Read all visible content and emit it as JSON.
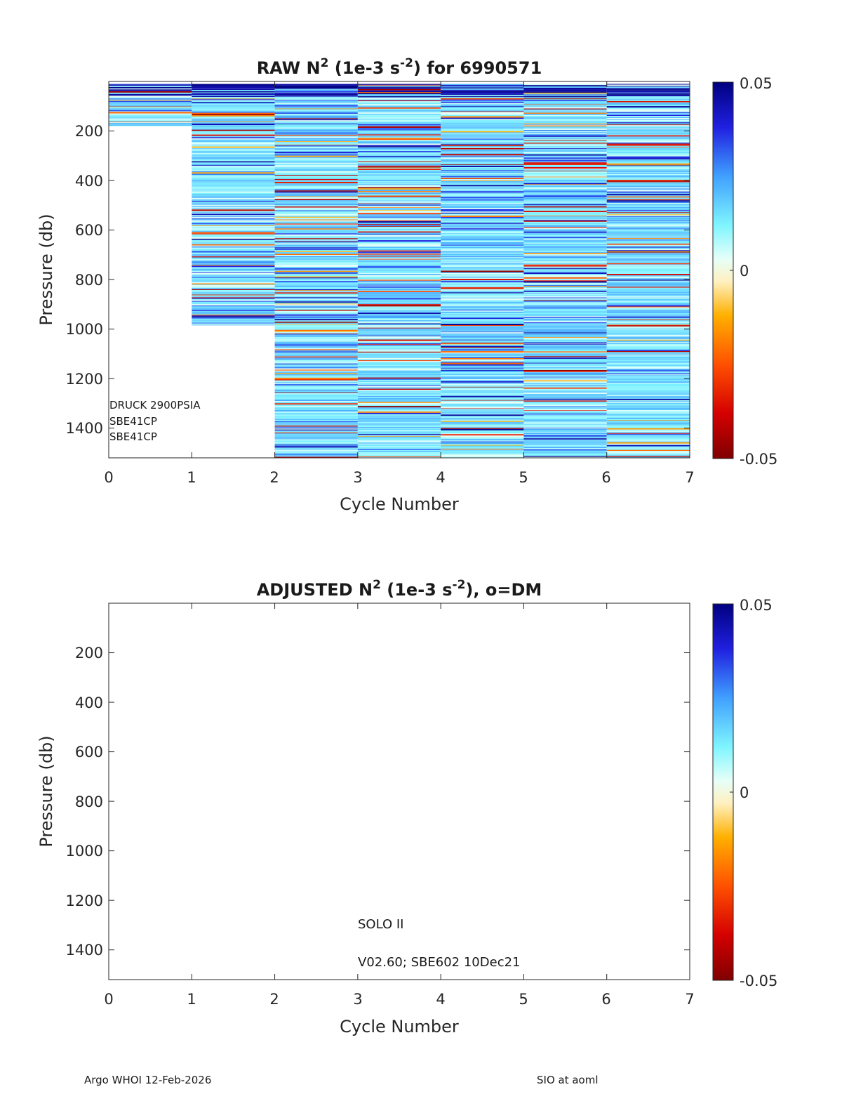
{
  "chart_data": [
    {
      "type": "heatmap",
      "title_main": "RAW N",
      "title_sup1": "2",
      "title_mid": " (1e-3 s",
      "title_sup2": "-2",
      "title_end": ") for 6990571",
      "xlabel": "Cycle Number",
      "ylabel": "Pressure (db)",
      "xlim": [
        0,
        7
      ],
      "ylim": [
        1520,
        0
      ],
      "xticks": [
        "0",
        "1",
        "2",
        "3",
        "4",
        "5",
        "6",
        "7"
      ],
      "yticks": [
        "200",
        "400",
        "600",
        "800",
        "1000",
        "1200",
        "1400"
      ],
      "ytick_values": [
        200,
        400,
        600,
        800,
        1000,
        1200,
        1400
      ],
      "colorbar": {
        "min": -0.05,
        "max": 0.05,
        "ticks": [
          "0.05",
          "0",
          "-0.05"
        ]
      },
      "columns": [
        {
          "cycle_start": 0,
          "cycle_end": 1,
          "max_pressure": 180
        },
        {
          "cycle_start": 1,
          "cycle_end": 2,
          "max_pressure": 985
        },
        {
          "cycle_start": 2,
          "cycle_end": 3,
          "max_pressure": 1520
        },
        {
          "cycle_start": 3,
          "cycle_end": 4,
          "max_pressure": 1520
        },
        {
          "cycle_start": 4,
          "cycle_end": 5,
          "max_pressure": 1520
        },
        {
          "cycle_start": 5,
          "cycle_end": 6,
          "max_pressure": 1520
        },
        {
          "cycle_start": 6,
          "cycle_end": 7,
          "max_pressure": 1520
        }
      ],
      "annotations": [
        "DRUCK 2900PSIA",
        "SBE41CP",
        "SBE41CP"
      ]
    },
    {
      "type": "heatmap",
      "title_main": "ADJUSTED N",
      "title_sup1": "2",
      "title_mid": " (1e-3 s",
      "title_sup2": "-2",
      "title_end": "), o=DM",
      "xlabel": "Cycle Number",
      "ylabel": "Pressure (db)",
      "xlim": [
        0,
        7
      ],
      "ylim": [
        1520,
        0
      ],
      "xticks": [
        "0",
        "1",
        "2",
        "3",
        "4",
        "5",
        "6",
        "7"
      ],
      "yticks": [
        "200",
        "400",
        "600",
        "800",
        "1000",
        "1200",
        "1400"
      ],
      "ytick_values": [
        200,
        400,
        600,
        800,
        1000,
        1200,
        1400
      ],
      "colorbar": {
        "min": -0.05,
        "max": 0.05,
        "ticks": [
          "0.05",
          "0",
          "-0.05"
        ]
      },
      "columns": [],
      "annotations": [
        "SOLO II",
        "V02.60; SBE602 10Dec21"
      ]
    }
  ],
  "footer": {
    "left": "Argo WHOI 12-Feb-2026",
    "right": "SIO at aoml"
  }
}
